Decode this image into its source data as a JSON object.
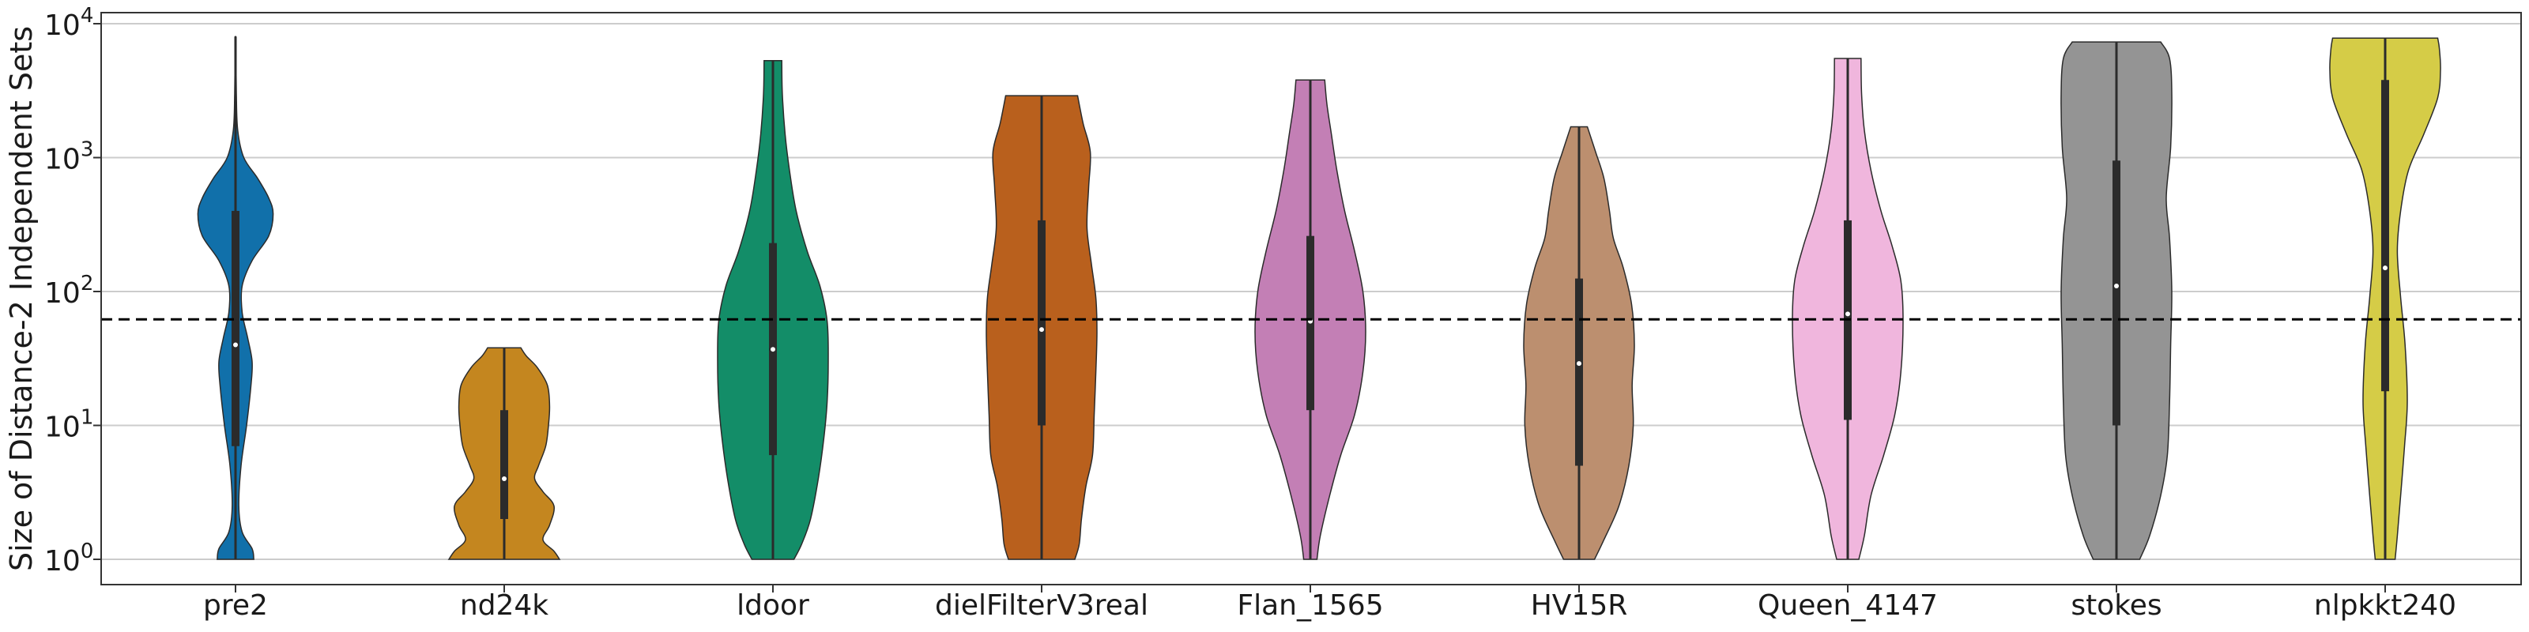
{
  "chart_data": {
    "type": "violin",
    "title": "",
    "xlabel": "",
    "ylabel": "Size of Distance-2 Independent Sets",
    "yscale": "log",
    "ylim": [
      0.7,
      12000
    ],
    "yticks": [
      {
        "value": 1,
        "base": "10",
        "exp": "0"
      },
      {
        "value": 10,
        "base": "10",
        "exp": "1"
      },
      {
        "value": 100,
        "base": "10",
        "exp": "2"
      },
      {
        "value": 1000,
        "base": "10",
        "exp": "3"
      },
      {
        "value": 10000,
        "base": "10",
        "exp": "4"
      }
    ],
    "grid": "horizontal",
    "reference_line": {
      "value": 62,
      "style": "dashed",
      "color": "#000000"
    },
    "categories": [
      "pre2",
      "nd24k",
      "ldoor",
      "dielFilterV3real",
      "Flan_1565",
      "HV15R",
      "Queen_4147",
      "stokes",
      "nlpkkt240"
    ],
    "violins": [
      {
        "category": "pre2",
        "color": "#1170aa",
        "min": 1,
        "max": 8000,
        "q1": 7,
        "median": 40,
        "q3": 400,
        "density": [
          [
            1,
            0.33
          ],
          [
            1.2,
            0.3
          ],
          [
            1.6,
            0.12
          ],
          [
            2.5,
            0.06
          ],
          [
            5,
            0.1
          ],
          [
            10,
            0.2
          ],
          [
            20,
            0.28
          ],
          [
            30,
            0.3
          ],
          [
            45,
            0.22
          ],
          [
            70,
            0.12
          ],
          [
            110,
            0.12
          ],
          [
            170,
            0.3
          ],
          [
            260,
            0.6
          ],
          [
            380,
            0.68
          ],
          [
            500,
            0.6
          ],
          [
            700,
            0.4
          ],
          [
            1000,
            0.15
          ],
          [
            1600,
            0.04
          ],
          [
            3000,
            0.015
          ],
          [
            8000,
            0.005
          ]
        ]
      },
      {
        "category": "nd24k",
        "color": "#c4861f",
        "min": 1,
        "max": 38,
        "q1": 2,
        "median": 4,
        "q3": 13,
        "density": [
          [
            1,
            1.0
          ],
          [
            1.15,
            0.9
          ],
          [
            1.4,
            0.7
          ],
          [
            1.8,
            0.82
          ],
          [
            2.5,
            0.9
          ],
          [
            3.2,
            0.7
          ],
          [
            4,
            0.55
          ],
          [
            5,
            0.62
          ],
          [
            7,
            0.75
          ],
          [
            10,
            0.8
          ],
          [
            14,
            0.82
          ],
          [
            20,
            0.78
          ],
          [
            27,
            0.6
          ],
          [
            33,
            0.4
          ],
          [
            38,
            0.3
          ]
        ]
      },
      {
        "category": "ldoor",
        "color": "#138d68",
        "min": 1,
        "max": 5300,
        "q1": 6,
        "median": 37,
        "q3": 230,
        "density": [
          [
            1,
            0.38
          ],
          [
            1.3,
            0.52
          ],
          [
            2,
            0.68
          ],
          [
            4,
            0.82
          ],
          [
            8,
            0.92
          ],
          [
            15,
            0.98
          ],
          [
            30,
            1.0
          ],
          [
            60,
            0.98
          ],
          [
            110,
            0.85
          ],
          [
            200,
            0.62
          ],
          [
            400,
            0.42
          ],
          [
            800,
            0.3
          ],
          [
            1500,
            0.22
          ],
          [
            3000,
            0.17
          ],
          [
            5300,
            0.16
          ]
        ]
      },
      {
        "category": "dielFilterV3real",
        "color": "#b9601d",
        "min": 1,
        "max": 2900,
        "q1": 10,
        "median": 52,
        "q3": 340,
        "density": [
          [
            1,
            0.6
          ],
          [
            1.3,
            0.68
          ],
          [
            2,
            0.72
          ],
          [
            3.5,
            0.8
          ],
          [
            6,
            0.92
          ],
          [
            12,
            0.95
          ],
          [
            25,
            0.98
          ],
          [
            50,
            1.0
          ],
          [
            90,
            0.98
          ],
          [
            160,
            0.9
          ],
          [
            300,
            0.82
          ],
          [
            600,
            0.85
          ],
          [
            1100,
            0.88
          ],
          [
            1800,
            0.75
          ],
          [
            2900,
            0.65
          ]
        ]
      },
      {
        "category": "Flan_1565",
        "color": "#c37fb5",
        "min": 1,
        "max": 3800,
        "q1": 13,
        "median": 60,
        "q3": 260,
        "density": [
          [
            1,
            0.12
          ],
          [
            1.5,
            0.18
          ],
          [
            3,
            0.35
          ],
          [
            6,
            0.55
          ],
          [
            12,
            0.8
          ],
          [
            25,
            0.95
          ],
          [
            50,
            1.0
          ],
          [
            100,
            0.95
          ],
          [
            200,
            0.8
          ],
          [
            400,
            0.62
          ],
          [
            800,
            0.48
          ],
          [
            1500,
            0.38
          ],
          [
            2500,
            0.3
          ],
          [
            3800,
            0.26
          ]
        ]
      },
      {
        "category": "HV15R",
        "color": "#bc8f6f",
        "min": 1,
        "max": 1700,
        "q1": 5,
        "median": 29,
        "q3": 125,
        "density": [
          [
            1,
            0.28
          ],
          [
            1.4,
            0.45
          ],
          [
            2.5,
            0.72
          ],
          [
            5,
            0.9
          ],
          [
            10,
            0.98
          ],
          [
            20,
            0.96
          ],
          [
            40,
            1.0
          ],
          [
            80,
            0.95
          ],
          [
            150,
            0.8
          ],
          [
            250,
            0.62
          ],
          [
            400,
            0.55
          ],
          [
            700,
            0.45
          ],
          [
            1100,
            0.3
          ],
          [
            1700,
            0.15
          ]
        ]
      },
      {
        "category": "Queen_4147",
        "color": "#f0b6dd",
        "min": 1,
        "max": 5500,
        "q1": 11,
        "median": 68,
        "q3": 340,
        "density": [
          [
            1,
            0.2
          ],
          [
            1.5,
            0.3
          ],
          [
            3,
            0.42
          ],
          [
            6,
            0.65
          ],
          [
            12,
            0.85
          ],
          [
            25,
            0.96
          ],
          [
            60,
            1.0
          ],
          [
            120,
            0.96
          ],
          [
            220,
            0.8
          ],
          [
            400,
            0.6
          ],
          [
            800,
            0.42
          ],
          [
            1600,
            0.3
          ],
          [
            3000,
            0.25
          ],
          [
            5500,
            0.24
          ]
        ]
      },
      {
        "category": "stokes",
        "color": "#949494",
        "min": 1,
        "max": 7300,
        "q1": 10,
        "median": 110,
        "q3": 950,
        "density": [
          [
            1,
            0.42
          ],
          [
            1.5,
            0.6
          ],
          [
            3,
            0.8
          ],
          [
            6,
            0.92
          ],
          [
            15,
            0.96
          ],
          [
            40,
            0.98
          ],
          [
            100,
            1.0
          ],
          [
            250,
            0.96
          ],
          [
            500,
            0.9
          ],
          [
            1200,
            0.98
          ],
          [
            3000,
            1.0
          ],
          [
            5500,
            0.96
          ],
          [
            7300,
            0.8
          ]
        ]
      },
      {
        "category": "nlpkkt240",
        "color": "#d5cc47",
        "min": 1,
        "max": 7800,
        "q1": 18,
        "median": 150,
        "q3": 3800,
        "density": [
          [
            1,
            0.18
          ],
          [
            1.5,
            0.22
          ],
          [
            3,
            0.28
          ],
          [
            7,
            0.35
          ],
          [
            15,
            0.4
          ],
          [
            40,
            0.36
          ],
          [
            90,
            0.28
          ],
          [
            200,
            0.22
          ],
          [
            400,
            0.28
          ],
          [
            800,
            0.42
          ],
          [
            1500,
            0.7
          ],
          [
            2800,
            0.95
          ],
          [
            4500,
            1.0
          ],
          [
            6500,
            0.98
          ],
          [
            7800,
            0.95
          ]
        ]
      }
    ]
  }
}
